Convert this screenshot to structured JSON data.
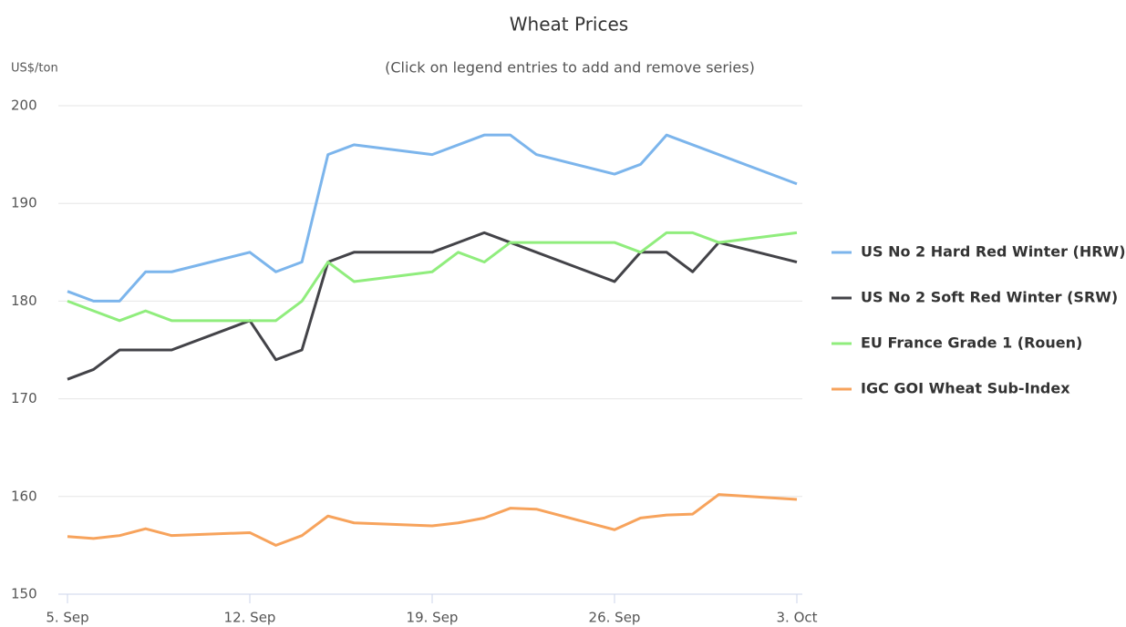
{
  "chart_data": {
    "type": "line",
    "title": "Wheat Prices",
    "subtitle": "(Click on legend entries to add and remove series)",
    "y_label": "US$/ton",
    "xlim": [
      0,
      28
    ],
    "xticks": [
      {
        "value": 0,
        "label": "5. Sep"
      },
      {
        "value": 7,
        "label": "12. Sep"
      },
      {
        "value": 14,
        "label": "19. Sep"
      },
      {
        "value": 21,
        "label": "26. Sep"
      },
      {
        "value": 28,
        "label": "3. Oct"
      }
    ],
    "ylim": [
      150,
      200
    ],
    "yticks": [
      150,
      160,
      170,
      180,
      190,
      200
    ],
    "grid": true,
    "legend": "right",
    "series": [
      {
        "name": "US No 2 Hard Red Winter (HRW)",
        "color": "#7cb5ec",
        "x": [
          0,
          1,
          2,
          3,
          4,
          7,
          8,
          9,
          10,
          11,
          14,
          16,
          17,
          18,
          21,
          22,
          23,
          28
        ],
        "values": [
          181,
          180,
          180,
          183,
          183,
          185,
          183,
          184,
          195,
          196,
          195,
          197,
          197,
          195,
          193,
          194,
          197,
          192
        ]
      },
      {
        "name": "US No 2 Soft Red Winter (SRW)",
        "color": "#434348",
        "x": [
          0,
          1,
          2,
          3,
          4,
          7,
          8,
          9,
          10,
          11,
          14,
          16,
          17,
          21,
          22,
          23,
          24,
          25,
          28
        ],
        "values": [
          172,
          173,
          175,
          175,
          175,
          178,
          174,
          175,
          184,
          185,
          185,
          187,
          186,
          182,
          185,
          185,
          183,
          186,
          184
        ]
      },
      {
        "name": "EU France Grade 1 (Rouen)",
        "color": "#90ed7d",
        "x": [
          0,
          1,
          2,
          3,
          4,
          7,
          8,
          9,
          10,
          11,
          14,
          15,
          16,
          17,
          21,
          22,
          23,
          24,
          25,
          28
        ],
        "values": [
          180,
          179,
          178,
          179,
          178,
          178,
          178,
          180,
          184,
          182,
          183,
          185,
          184,
          186,
          186,
          185,
          187,
          187,
          186,
          187
        ]
      },
      {
        "name": "IGC GOI Wheat Sub-Index",
        "color": "#f7a35c",
        "x": [
          0,
          1,
          2,
          3,
          4,
          7,
          8,
          9,
          10,
          11,
          14,
          15,
          16,
          17,
          18,
          21,
          22,
          23,
          24,
          25,
          28
        ],
        "values": [
          155.9,
          155.7,
          156,
          156.7,
          156,
          156.3,
          155,
          156,
          158,
          157.3,
          157,
          157.3,
          157.8,
          158.8,
          158.7,
          156.6,
          157.8,
          158.1,
          158.2,
          160.2,
          159.7
        ]
      }
    ]
  }
}
